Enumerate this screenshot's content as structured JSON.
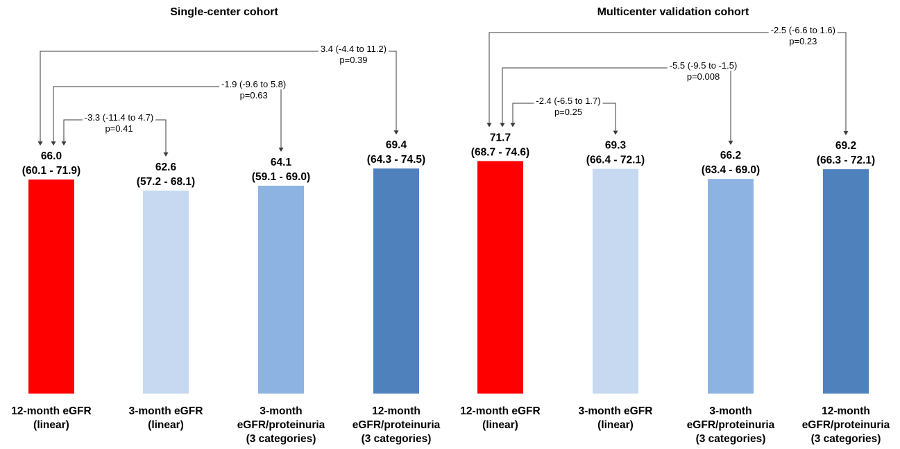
{
  "chart_data": [
    {
      "type": "bar",
      "title": "Single-center cohort",
      "categories": [
        [
          "12-month eGFR",
          "(linear)"
        ],
        [
          "3-month eGFR",
          "(linear)"
        ],
        [
          "3-month",
          "eGFR/proteinuria",
          "(3 categories)"
        ],
        [
          "12-month",
          "eGFR/proteinuria",
          "(3 categories)"
        ]
      ],
      "values": [
        66.0,
        62.6,
        64.1,
        69.4
      ],
      "ci_labels": [
        "(60.1 - 71.9)",
        "(57.2 - 68.1)",
        "(59.1 - 69.0)",
        "(64.3 - 74.5)"
      ],
      "colors": [
        "#ff0000",
        "#c6d9f1",
        "#8db3e2",
        "#4f81bd"
      ],
      "ylim": [
        0,
        100
      ],
      "comparisons": [
        {
          "from": 0,
          "to": 1,
          "diff": "-3.3 (-11.4 to 4.7)",
          "p": "p=0.41"
        },
        {
          "from": 0,
          "to": 2,
          "diff": "-1.9 (-9.6 to 5.8)",
          "p": "p=0.63"
        },
        {
          "from": 0,
          "to": 3,
          "diff": "3.4 (-4.4 to 11.2)",
          "p": "p=0.39"
        }
      ]
    },
    {
      "type": "bar",
      "title": "Multicenter validation cohort",
      "categories": [
        [
          "12-month eGFR",
          "(linear)"
        ],
        [
          "3-month eGFR",
          "(linear)"
        ],
        [
          "3-month",
          "eGFR/proteinuria",
          "(3 categories)"
        ],
        [
          "12-month",
          "eGFR/proteinuria",
          "(3 categories)"
        ]
      ],
      "values": [
        71.7,
        69.3,
        66.2,
        69.2
      ],
      "ci_labels": [
        "(68.7 - 74.6)",
        "(66.4 - 72.1)",
        "(63.4 - 69.0)",
        "(66.3 - 72.1)"
      ],
      "colors": [
        "#ff0000",
        "#c6d9f1",
        "#8db3e2",
        "#4f81bd"
      ],
      "ylim": [
        0,
        100
      ],
      "comparisons": [
        {
          "from": 0,
          "to": 1,
          "diff": "-2.4 (-6.5 to 1.7)",
          "p": "p=0.25"
        },
        {
          "from": 0,
          "to": 2,
          "diff": "-5.5 (-9.5 to -1.5)",
          "p": "p=0.008"
        },
        {
          "from": 0,
          "to": 3,
          "diff": "-2.5 (-6.6 to 1.6)",
          "p": "p=0.23"
        }
      ]
    }
  ]
}
